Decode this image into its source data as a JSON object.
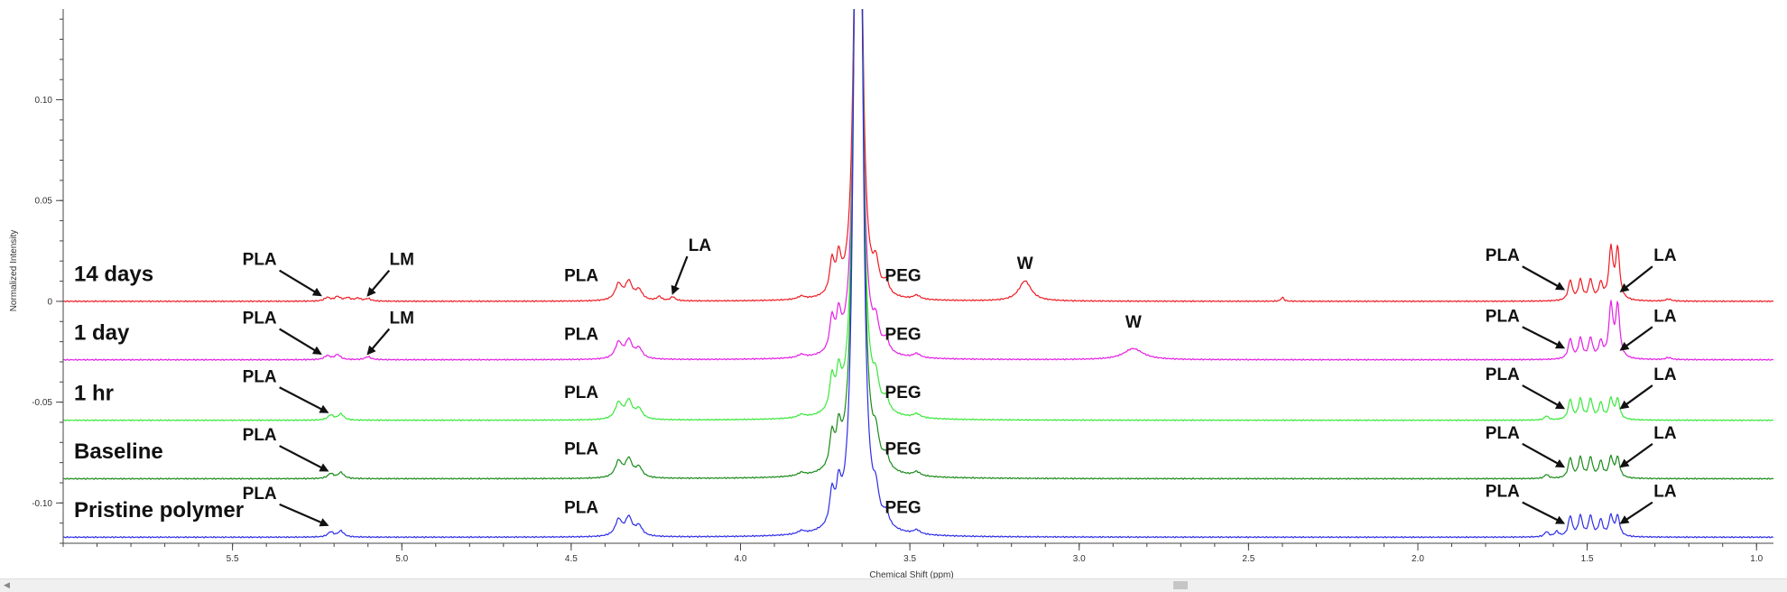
{
  "chart_data": {
    "type": "line",
    "title": "",
    "xlabel": "Chemical Shift (ppm)",
    "ylabel": "Normalized Intensity",
    "xlim": [
      6.0,
      0.95
    ],
    "ylim": [
      -0.12,
      0.145
    ],
    "x_reversed": true,
    "x_ticks": [
      5.5,
      5.0,
      4.5,
      4.0,
      3.5,
      3.0,
      2.5,
      2.0,
      1.5,
      1.0
    ],
    "x_tick_labels": [
      "5.5",
      "5.0",
      "4.5",
      "4.0",
      "3.5",
      "3.0",
      "2.5",
      "2.0",
      "1.5",
      "1.0"
    ],
    "y_ticks": [
      0.1,
      0.05,
      0,
      -0.05,
      -0.1
    ],
    "y_tick_labels": [
      "0.10",
      "0.05",
      "0",
      "-0.05",
      "-0.10"
    ],
    "grid": false,
    "legend": "none",
    "series": [
      {
        "name": "14 days",
        "color": "#ee1c24",
        "baseline": 0.0,
        "peaks": [
          [
            5.22,
            0.0018,
            0.01
          ],
          [
            5.19,
            0.0022,
            0.01
          ],
          [
            5.16,
            0.0016,
            0.01
          ],
          [
            5.13,
            0.0014,
            0.01
          ],
          [
            5.1,
            0.0012,
            0.01
          ],
          [
            4.36,
            0.008,
            0.012
          ],
          [
            4.33,
            0.009,
            0.012
          ],
          [
            4.3,
            0.005,
            0.012
          ],
          [
            4.24,
            0.002,
            0.008
          ],
          [
            4.2,
            0.002,
            0.008
          ],
          [
            3.82,
            0.0015,
            0.012
          ],
          [
            3.73,
            0.016,
            0.008
          ],
          [
            3.71,
            0.016,
            0.008
          ],
          [
            3.66,
            0.15,
            0.01
          ],
          [
            3.645,
            0.15,
            0.01
          ],
          [
            3.6,
            0.013,
            0.01
          ],
          [
            3.57,
            0.006,
            0.01
          ],
          [
            3.48,
            0.002,
            0.012
          ],
          [
            3.16,
            0.01,
            0.022
          ],
          [
            2.4,
            0.002,
            0.005
          ],
          [
            1.55,
            0.01,
            0.007
          ],
          [
            1.52,
            0.01,
            0.007
          ],
          [
            1.49,
            0.01,
            0.007
          ],
          [
            1.46,
            0.008,
            0.007
          ],
          [
            1.43,
            0.025,
            0.007
          ],
          [
            1.41,
            0.025,
            0.007
          ],
          [
            1.26,
            0.001,
            0.01
          ]
        ]
      },
      {
        "name": "1 day",
        "color": "#e41fe4",
        "baseline": -0.029,
        "peaks": [
          [
            5.22,
            0.002,
            0.01
          ],
          [
            5.19,
            0.0025,
            0.01
          ],
          [
            5.1,
            0.0015,
            0.01
          ],
          [
            4.36,
            0.008,
            0.012
          ],
          [
            4.33,
            0.009,
            0.012
          ],
          [
            4.3,
            0.005,
            0.012
          ],
          [
            3.82,
            0.0015,
            0.012
          ],
          [
            3.73,
            0.016,
            0.008
          ],
          [
            3.71,
            0.016,
            0.008
          ],
          [
            3.66,
            0.165,
            0.01
          ],
          [
            3.645,
            0.165,
            0.01
          ],
          [
            3.6,
            0.012,
            0.01
          ],
          [
            3.57,
            0.006,
            0.01
          ],
          [
            3.48,
            0.002,
            0.012
          ],
          [
            2.84,
            0.0055,
            0.035
          ],
          [
            1.55,
            0.01,
            0.007
          ],
          [
            1.52,
            0.01,
            0.007
          ],
          [
            1.49,
            0.01,
            0.007
          ],
          [
            1.46,
            0.008,
            0.007
          ],
          [
            1.43,
            0.026,
            0.007
          ],
          [
            1.41,
            0.026,
            0.007
          ],
          [
            1.26,
            0.001,
            0.01
          ]
        ]
      },
      {
        "name": "1 hr",
        "color": "#3ae83a",
        "baseline": -0.059,
        "peaks": [
          [
            5.21,
            0.0025,
            0.01
          ],
          [
            5.18,
            0.003,
            0.01
          ],
          [
            4.36,
            0.008,
            0.012
          ],
          [
            4.33,
            0.009,
            0.012
          ],
          [
            4.3,
            0.005,
            0.012
          ],
          [
            3.82,
            0.0015,
            0.012
          ],
          [
            3.73,
            0.016,
            0.008
          ],
          [
            3.71,
            0.016,
            0.008
          ],
          [
            3.66,
            0.2,
            0.01
          ],
          [
            3.645,
            0.2,
            0.01
          ],
          [
            3.6,
            0.012,
            0.01
          ],
          [
            3.57,
            0.006,
            0.01
          ],
          [
            3.48,
            0.002,
            0.012
          ],
          [
            1.62,
            0.002,
            0.007
          ],
          [
            1.55,
            0.01,
            0.007
          ],
          [
            1.52,
            0.01,
            0.007
          ],
          [
            1.49,
            0.01,
            0.007
          ],
          [
            1.46,
            0.008,
            0.007
          ],
          [
            1.43,
            0.01,
            0.007
          ],
          [
            1.41,
            0.01,
            0.007
          ]
        ]
      },
      {
        "name": "Baseline",
        "color": "#1a8b1a",
        "baseline": -0.088,
        "peaks": [
          [
            5.21,
            0.0025,
            0.01
          ],
          [
            5.18,
            0.003,
            0.01
          ],
          [
            4.36,
            0.008,
            0.012
          ],
          [
            4.33,
            0.009,
            0.012
          ],
          [
            4.3,
            0.005,
            0.012
          ],
          [
            3.82,
            0.0015,
            0.012
          ],
          [
            3.73,
            0.016,
            0.008
          ],
          [
            3.71,
            0.016,
            0.008
          ],
          [
            3.66,
            0.23,
            0.01
          ],
          [
            3.645,
            0.23,
            0.01
          ],
          [
            3.6,
            0.012,
            0.01
          ],
          [
            3.57,
            0.006,
            0.01
          ],
          [
            3.48,
            0.002,
            0.012
          ],
          [
            1.62,
            0.002,
            0.007
          ],
          [
            1.55,
            0.01,
            0.007
          ],
          [
            1.52,
            0.01,
            0.007
          ],
          [
            1.49,
            0.01,
            0.007
          ],
          [
            1.46,
            0.008,
            0.007
          ],
          [
            1.43,
            0.01,
            0.007
          ],
          [
            1.41,
            0.01,
            0.007
          ]
        ]
      },
      {
        "name": "Pristine polymer",
        "color": "#2e2ee8",
        "baseline": -0.117,
        "peaks": [
          [
            5.21,
            0.0025,
            0.01
          ],
          [
            5.18,
            0.003,
            0.01
          ],
          [
            4.36,
            0.008,
            0.012
          ],
          [
            4.33,
            0.009,
            0.012
          ],
          [
            4.3,
            0.005,
            0.012
          ],
          [
            3.82,
            0.0015,
            0.012
          ],
          [
            3.73,
            0.016,
            0.008
          ],
          [
            3.71,
            0.016,
            0.008
          ],
          [
            3.66,
            0.25,
            0.01
          ],
          [
            3.645,
            0.25,
            0.01
          ],
          [
            3.6,
            0.012,
            0.01
          ],
          [
            3.57,
            0.006,
            0.01
          ],
          [
            3.48,
            0.002,
            0.012
          ],
          [
            1.62,
            0.0025,
            0.007
          ],
          [
            1.59,
            0.0025,
            0.007
          ],
          [
            1.55,
            0.01,
            0.007
          ],
          [
            1.52,
            0.01,
            0.007
          ],
          [
            1.49,
            0.01,
            0.007
          ],
          [
            1.46,
            0.008,
            0.007
          ],
          [
            1.43,
            0.01,
            0.007
          ],
          [
            1.41,
            0.01,
            0.007
          ]
        ]
      }
    ],
    "trace_labels": [
      {
        "text": "14 days",
        "y": 0.01
      },
      {
        "text": "1 day",
        "y": -0.019
      },
      {
        "text": "1 hr",
        "y": -0.049
      },
      {
        "text": "Baseline",
        "y": -0.078
      },
      {
        "text": "Pristine polymer",
        "y": -0.107
      }
    ],
    "annotations": [
      {
        "text": "PLA",
        "x": 5.42,
        "y": 0.018,
        "arrow_to": [
          5.24,
          0.003
        ]
      },
      {
        "text": "LM",
        "x": 5.0,
        "y": 0.018,
        "arrow_to": [
          5.1,
          0.003
        ]
      },
      {
        "text": "PLA",
        "x": 4.47,
        "y": 0.01
      },
      {
        "text": "LA",
        "x": 4.12,
        "y": 0.025,
        "arrow_to": [
          4.2,
          0.004
        ]
      },
      {
        "text": "PEG",
        "x": 3.52,
        "y": 0.01
      },
      {
        "text": "W",
        "x": 3.16,
        "y": 0.016
      },
      {
        "text": "PLA",
        "x": 1.75,
        "y": 0.02,
        "arrow_to": [
          1.57,
          0.006
        ]
      },
      {
        "text": "LA",
        "x": 1.27,
        "y": 0.02,
        "arrow_to": [
          1.4,
          0.005
        ]
      },
      {
        "text": "PLA",
        "x": 5.42,
        "y": -0.011,
        "arrow_to": [
          5.24,
          -0.026
        ]
      },
      {
        "text": "LM",
        "x": 5.0,
        "y": -0.011,
        "arrow_to": [
          5.1,
          -0.026
        ]
      },
      {
        "text": "PLA",
        "x": 4.47,
        "y": -0.019
      },
      {
        "text": "PEG",
        "x": 3.52,
        "y": -0.019
      },
      {
        "text": "W",
        "x": 2.84,
        "y": -0.013
      },
      {
        "text": "PLA",
        "x": 1.75,
        "y": -0.01,
        "arrow_to": [
          1.57,
          -0.023
        ]
      },
      {
        "text": "LA",
        "x": 1.27,
        "y": -0.01,
        "arrow_to": [
          1.4,
          -0.024
        ]
      },
      {
        "text": "PLA",
        "x": 5.42,
        "y": -0.04,
        "arrow_to": [
          5.22,
          -0.055
        ]
      },
      {
        "text": "PLA",
        "x": 4.47,
        "y": -0.048
      },
      {
        "text": "PEG",
        "x": 3.52,
        "y": -0.048
      },
      {
        "text": "PLA",
        "x": 1.75,
        "y": -0.039,
        "arrow_to": [
          1.57,
          -0.053
        ]
      },
      {
        "text": "LA",
        "x": 1.27,
        "y": -0.039,
        "arrow_to": [
          1.4,
          -0.053
        ]
      },
      {
        "text": "PLA",
        "x": 5.42,
        "y": -0.069,
        "arrow_to": [
          5.22,
          -0.084
        ]
      },
      {
        "text": "PLA",
        "x": 4.47,
        "y": -0.076
      },
      {
        "text": "PEG",
        "x": 3.52,
        "y": -0.076
      },
      {
        "text": "PLA",
        "x": 1.75,
        "y": -0.068,
        "arrow_to": [
          1.57,
          -0.082
        ]
      },
      {
        "text": "LA",
        "x": 1.27,
        "y": -0.068,
        "arrow_to": [
          1.4,
          -0.082
        ]
      },
      {
        "text": "PLA",
        "x": 5.42,
        "y": -0.098,
        "arrow_to": [
          5.22,
          -0.111
        ]
      },
      {
        "text": "PLA",
        "x": 4.47,
        "y": -0.105
      },
      {
        "text": "PEG",
        "x": 3.52,
        "y": -0.105
      },
      {
        "text": "PLA",
        "x": 1.75,
        "y": -0.097,
        "arrow_to": [
          1.57,
          -0.11
        ]
      },
      {
        "text": "LA",
        "x": 1.27,
        "y": -0.097,
        "arrow_to": [
          1.4,
          -0.11
        ]
      }
    ]
  }
}
